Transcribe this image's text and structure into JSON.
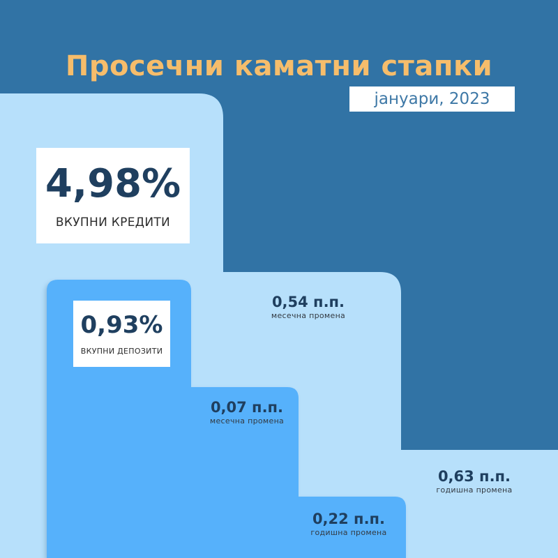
{
  "title": "Просечни каматни стапки",
  "date": "јануари, 2023",
  "loans": {
    "value": "4,98%",
    "label": "ВКУПНИ КРЕДИТИ",
    "monthly_change": {
      "value": "0,54 п.п.",
      "label": "месечна промена"
    },
    "annual_change": {
      "value": "0,63 п.п.",
      "label": "годишна промена"
    }
  },
  "deposits": {
    "value": "0,93%",
    "label": "ВКУПНИ ДЕПОЗИТИ",
    "monthly_change": {
      "value": "0,07 п.п.",
      "label": "месечна промена"
    },
    "annual_change": {
      "value": "0,22 п.п.",
      "label": "годишна промена"
    }
  },
  "colors": {
    "background": "#3173a5",
    "title": "#f6bd6b",
    "loans_block": "#b7e0fb",
    "deposits_block": "#57b1fb",
    "value_text": "#1f3f5f"
  }
}
